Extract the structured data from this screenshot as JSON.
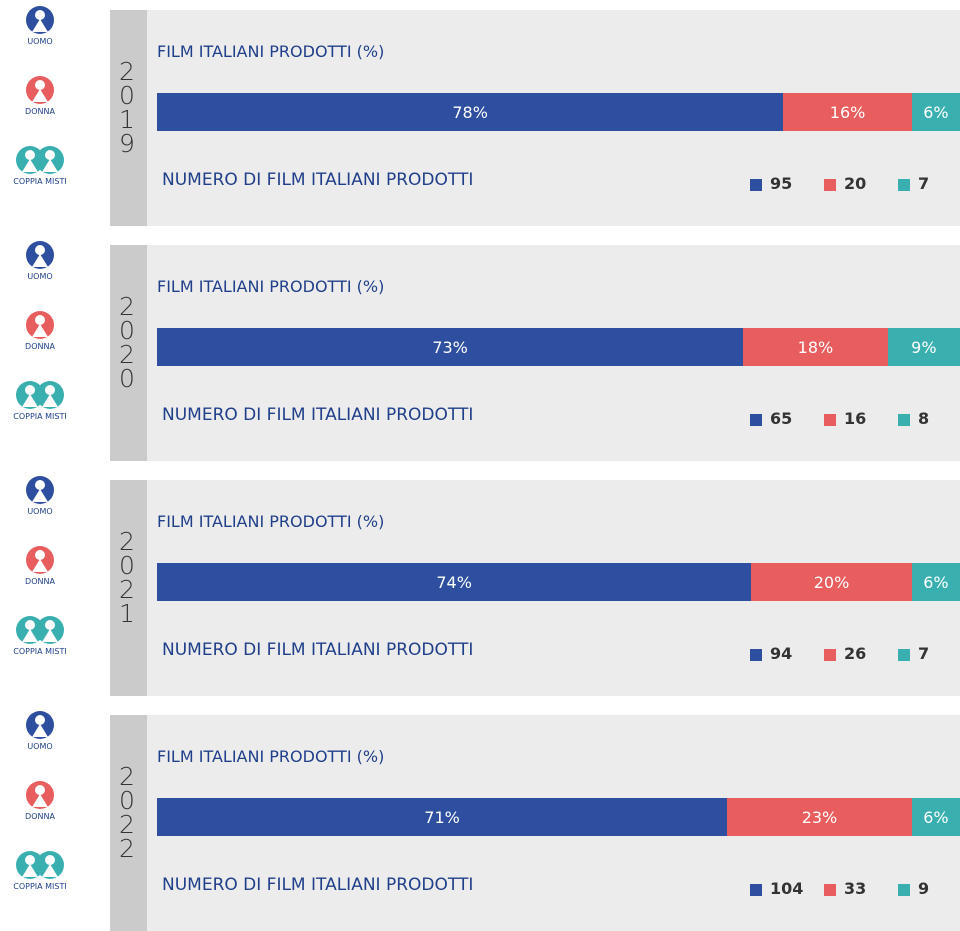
{
  "chart_data": [
    {
      "type": "stacked_bar",
      "year": "2019",
      "title": "FILM ITALIANI PRODOTTI (%)",
      "count_title": "NUMERO DI FILM ITALIANI PRODOTTI",
      "series": [
        {
          "name": "UOMO",
          "color": "#2e4fa0",
          "values": [
            78
          ],
          "value_labels": [
            "78%"
          ],
          "counts": [
            95
          ]
        },
        {
          "name": "DONNA",
          "color": "#e85d5d",
          "values": [
            16
          ],
          "value_labels": [
            "16%"
          ],
          "counts": [
            20
          ]
        },
        {
          "name": "COPPIA MISTI",
          "color": "#3aafb0",
          "values": [
            6
          ],
          "value_labels": [
            "6%"
          ],
          "counts": [
            7
          ]
        }
      ]
    },
    {
      "type": "stacked_bar",
      "year": "2020",
      "title": "FILM ITALIANI PRODOTTI (%)",
      "count_title": "NUMERO DI FILM ITALIANI PRODOTTI",
      "series": [
        {
          "name": "UOMO",
          "color": "#2e4fa0",
          "values": [
            73
          ],
          "value_labels": [
            "73%"
          ],
          "counts": [
            65
          ]
        },
        {
          "name": "DONNA",
          "color": "#e85d5d",
          "values": [
            18
          ],
          "value_labels": [
            "18%"
          ],
          "counts": [
            16
          ]
        },
        {
          "name": "COPPIA MISTI",
          "color": "#3aafb0",
          "values": [
            9
          ],
          "value_labels": [
            "9%"
          ],
          "counts": [
            8
          ]
        }
      ]
    },
    {
      "type": "stacked_bar",
      "year": "2021",
      "title": "FILM ITALIANI PRODOTTI (%)",
      "count_title": "NUMERO DI FILM ITALIANI PRODOTTI",
      "series": [
        {
          "name": "UOMO",
          "color": "#2e4fa0",
          "values": [
            74
          ],
          "value_labels": [
            "74%"
          ],
          "counts": [
            94
          ]
        },
        {
          "name": "DONNA",
          "color": "#e85d5d",
          "values": [
            20
          ],
          "value_labels": [
            "20%"
          ],
          "counts": [
            26
          ]
        },
        {
          "name": "COPPIA MISTI",
          "color": "#3aafb0",
          "values": [
            6
          ],
          "value_labels": [
            "6%"
          ],
          "counts": [
            7
          ]
        }
      ]
    },
    {
      "type": "stacked_bar",
      "year": "2022",
      "title": "FILM ITALIANI PRODOTTI (%)",
      "count_title": "NUMERO DI FILM ITALIANI PRODOTTI",
      "series": [
        {
          "name": "UOMO",
          "color": "#2e4fa0",
          "values": [
            71
          ],
          "value_labels": [
            "71%"
          ],
          "counts": [
            104
          ]
        },
        {
          "name": "DONNA",
          "color": "#e85d5d",
          "values": [
            23
          ],
          "value_labels": [
            "23%"
          ],
          "counts": [
            33
          ]
        },
        {
          "name": "COPPIA MISTI",
          "color": "#3aafb0",
          "values": [
            6
          ],
          "value_labels": [
            "6%"
          ],
          "counts": [
            9
          ]
        }
      ]
    }
  ]
}
